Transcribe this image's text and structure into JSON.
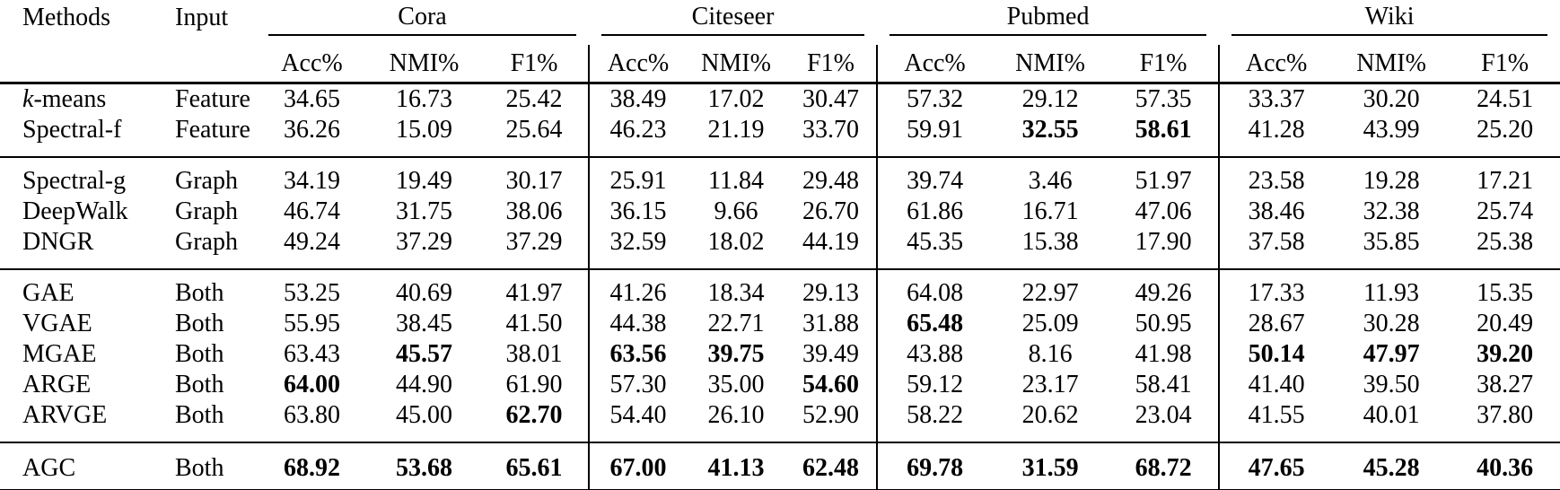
{
  "page": {
    "background": "#ffffff",
    "text_color": "#000000",
    "rule_color": "#000000"
  },
  "table": {
    "header": {
      "methods_label": "Methods",
      "input_label": "Input",
      "datasets": [
        "Cora",
        "Citeseer",
        "Pubmed",
        "Wiki"
      ],
      "metrics": [
        "Acc%",
        "NMI%",
        "F1%"
      ]
    },
    "groups": [
      {
        "rows": [
          {
            "method": "k-means",
            "italic_first_char": true,
            "input": "Feature",
            "values": [
              "34.65",
              "16.73",
              "25.42",
              "38.49",
              "17.02",
              "30.47",
              "57.32",
              "29.12",
              "57.35",
              "33.37",
              "30.20",
              "24.51"
            ],
            "bold": [
              false,
              false,
              false,
              false,
              false,
              false,
              false,
              false,
              false,
              false,
              false,
              false
            ]
          },
          {
            "method": "Spectral-f",
            "input": "Feature",
            "values": [
              "36.26",
              "15.09",
              "25.64",
              "46.23",
              "21.19",
              "33.70",
              "59.91",
              "32.55",
              "58.61",
              "41.28",
              "43.99",
              "25.20"
            ],
            "bold": [
              false,
              false,
              false,
              false,
              false,
              false,
              false,
              true,
              true,
              false,
              false,
              false
            ]
          }
        ]
      },
      {
        "rows": [
          {
            "method": "Spectral-g",
            "input": "Graph",
            "values": [
              "34.19",
              "19.49",
              "30.17",
              "25.91",
              "11.84",
              "29.48",
              "39.74",
              "3.46",
              "51.97",
              "23.58",
              "19.28",
              "17.21"
            ],
            "bold": [
              false,
              false,
              false,
              false,
              false,
              false,
              false,
              false,
              false,
              false,
              false,
              false
            ]
          },
          {
            "method": "DeepWalk",
            "input": "Graph",
            "values": [
              "46.74",
              "31.75",
              "38.06",
              "36.15",
              "9.66",
              "26.70",
              "61.86",
              "16.71",
              "47.06",
              "38.46",
              "32.38",
              "25.74"
            ],
            "bold": [
              false,
              false,
              false,
              false,
              false,
              false,
              false,
              false,
              false,
              false,
              false,
              false
            ]
          },
          {
            "method": "DNGR",
            "input": "Graph",
            "values": [
              "49.24",
              "37.29",
              "37.29",
              "32.59",
              "18.02",
              "44.19",
              "45.35",
              "15.38",
              "17.90",
              "37.58",
              "35.85",
              "25.38"
            ],
            "bold": [
              false,
              false,
              false,
              false,
              false,
              false,
              false,
              false,
              false,
              false,
              false,
              false
            ]
          }
        ]
      },
      {
        "rows": [
          {
            "method": "GAE",
            "input": "Both",
            "values": [
              "53.25",
              "40.69",
              "41.97",
              "41.26",
              "18.34",
              "29.13",
              "64.08",
              "22.97",
              "49.26",
              "17.33",
              "11.93",
              "15.35"
            ],
            "bold": [
              false,
              false,
              false,
              false,
              false,
              false,
              false,
              false,
              false,
              false,
              false,
              false
            ]
          },
          {
            "method": "VGAE",
            "input": "Both",
            "values": [
              "55.95",
              "38.45",
              "41.50",
              "44.38",
              "22.71",
              "31.88",
              "65.48",
              "25.09",
              "50.95",
              "28.67",
              "30.28",
              "20.49"
            ],
            "bold": [
              false,
              false,
              false,
              false,
              false,
              false,
              true,
              false,
              false,
              false,
              false,
              false
            ]
          },
          {
            "method": "MGAE",
            "input": "Both",
            "values": [
              "63.43",
              "45.57",
              "38.01",
              "63.56",
              "39.75",
              "39.49",
              "43.88",
              "8.16",
              "41.98",
              "50.14",
              "47.97",
              "39.20"
            ],
            "bold": [
              false,
              true,
              false,
              true,
              true,
              false,
              false,
              false,
              false,
              true,
              true,
              true
            ]
          },
          {
            "method": "ARGE",
            "input": "Both",
            "values": [
              "64.00",
              "44.90",
              "61.90",
              "57.30",
              "35.00",
              "54.60",
              "59.12",
              "23.17",
              "58.41",
              "41.40",
              "39.50",
              "38.27"
            ],
            "bold": [
              true,
              false,
              false,
              false,
              false,
              true,
              false,
              false,
              false,
              false,
              false,
              false
            ]
          },
          {
            "method": "ARVGE",
            "input": "Both",
            "values": [
              "63.80",
              "45.00",
              "62.70",
              "54.40",
              "26.10",
              "52.90",
              "58.22",
              "20.62",
              "23.04",
              "41.55",
              "40.01",
              "37.80"
            ],
            "bold": [
              false,
              false,
              true,
              false,
              false,
              false,
              false,
              false,
              false,
              false,
              false,
              false
            ]
          }
        ]
      },
      {
        "rows": [
          {
            "method": "AGC",
            "input": "Both",
            "values": [
              "68.92",
              "53.68",
              "65.61",
              "67.00",
              "41.13",
              "62.48",
              "69.78",
              "31.59",
              "68.72",
              "47.65",
              "45.28",
              "40.36"
            ],
            "bold": [
              true,
              true,
              true,
              true,
              true,
              true,
              true,
              true,
              true,
              true,
              true,
              true
            ]
          }
        ]
      }
    ]
  }
}
